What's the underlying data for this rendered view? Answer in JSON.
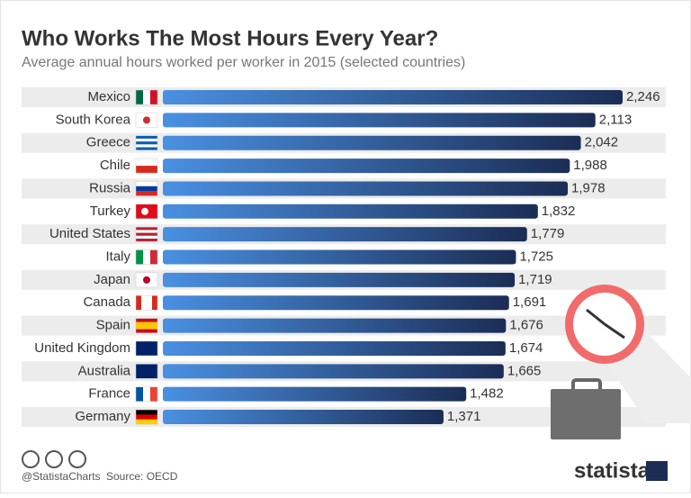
{
  "chart_data": {
    "type": "bar",
    "orientation": "horizontal",
    "title": "Who Works The Most Hours Every Year?",
    "subtitle": "Average annual hours worked per worker in 2015 (selected countries)",
    "categories": [
      "Mexico",
      "South Korea",
      "Greece",
      "Chile",
      "Russia",
      "Turkey",
      "United States",
      "Italy",
      "Japan",
      "Canada",
      "Spain",
      "United Kingdom",
      "Australia",
      "France",
      "Germany"
    ],
    "values": [
      2246,
      2113,
      2042,
      1988,
      1978,
      1832,
      1779,
      1725,
      1719,
      1691,
      1676,
      1674,
      1665,
      1482,
      1371
    ],
    "value_labels": [
      "2,246",
      "2,113",
      "2,042",
      "1,988",
      "1,978",
      "1,832",
      "1,779",
      "1,725",
      "1,719",
      "1,691",
      "1,676",
      "1,674",
      "1,665",
      "1,482",
      "1,371"
    ],
    "color_start": "#4a90e2",
    "color_end": "#1b2d55",
    "credit": "@StatistaCharts",
    "source": "Source: OECD",
    "brand": "statista"
  }
}
